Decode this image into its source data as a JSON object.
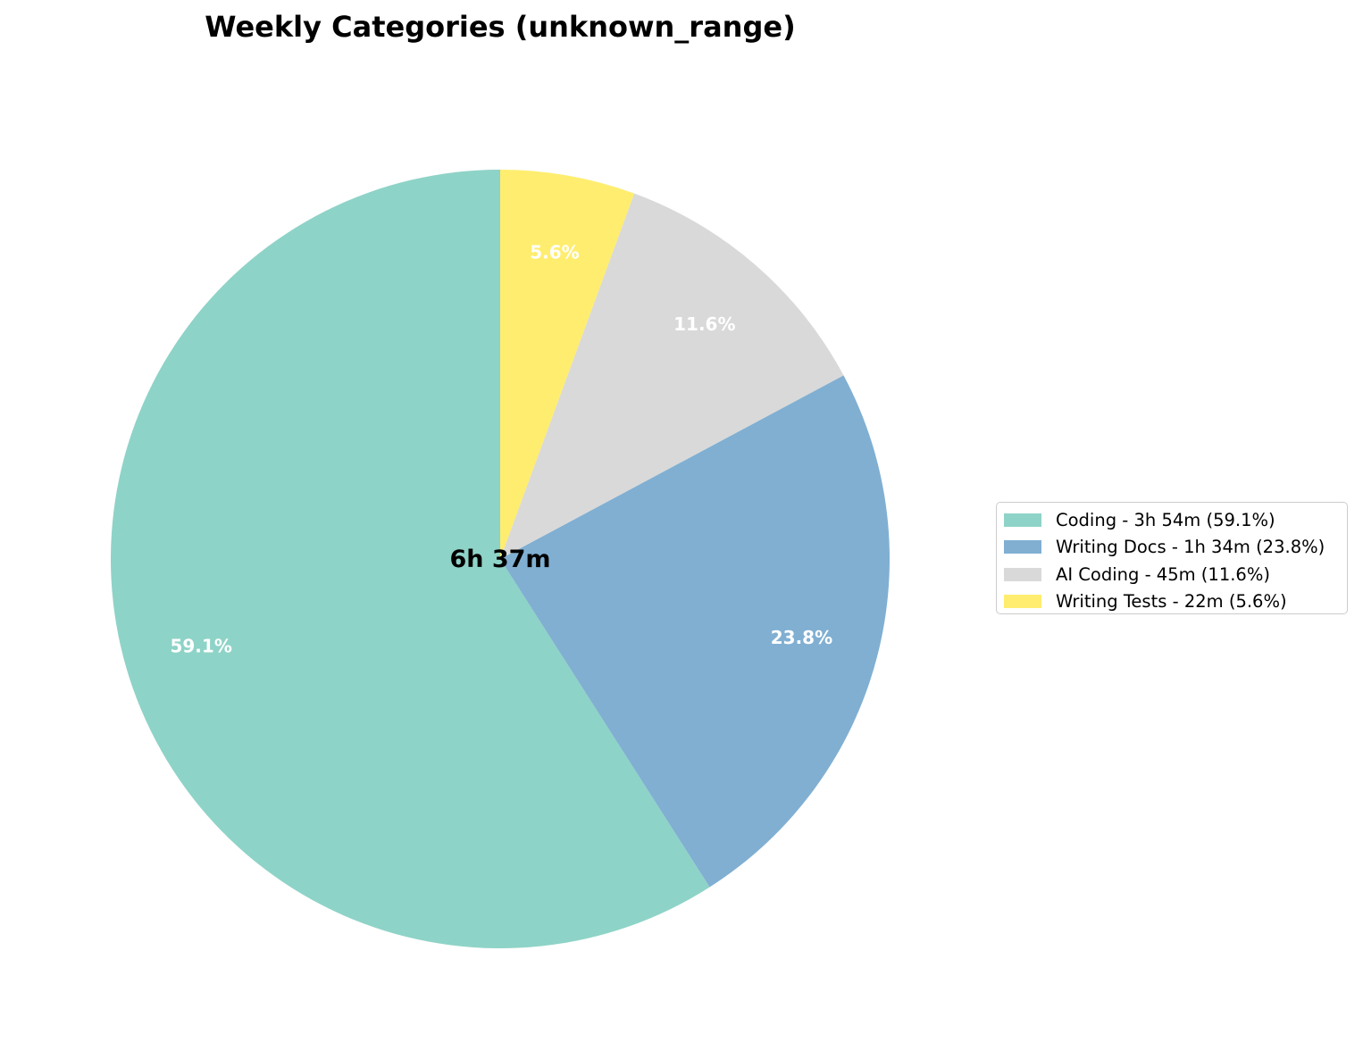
{
  "chart_data": {
    "type": "pie",
    "title": "Weekly Categories (unknown_range)",
    "center_label": "6h 37m",
    "start_angle": "top, counter-clockwise",
    "legend_position": "right",
    "slices": [
      {
        "category": "Coding",
        "value": 59.1,
        "pct_label": "59.1%",
        "legend_label": "Coding - 3h 54m (59.1%)",
        "color": "#8ed3c7"
      },
      {
        "category": "Writing Docs",
        "value": 23.8,
        "pct_label": "23.8%",
        "legend_label": "Writing Docs - 1h 34m (23.8%)",
        "color": "#80afd2"
      },
      {
        "category": "AI Coding",
        "value": 11.6,
        "pct_label": "11.6%",
        "legend_label": "AI Coding - 45m (11.6%)",
        "color": "#d9d9d9"
      },
      {
        "category": "Writing Tests",
        "value": 5.6,
        "pct_label": "5.6%",
        "legend_label": "Writing Tests - 22m (5.6%)",
        "color": "#ffed6f"
      }
    ]
  }
}
